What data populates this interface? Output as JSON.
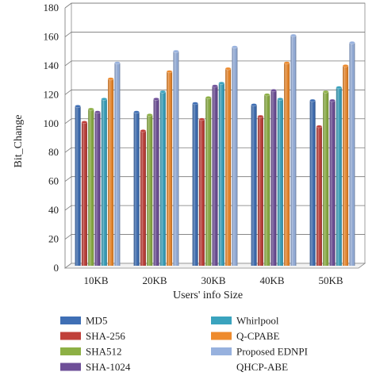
{
  "chart_data": {
    "type": "bar",
    "ylabel": "Bit_Change",
    "xlabel": "Users' info Size",
    "categories": [
      "10KB",
      "20KB",
      "30KB",
      "40KB",
      "50KB"
    ],
    "ylim": [
      0,
      180
    ],
    "yticks": [
      0,
      20,
      40,
      60,
      80,
      100,
      120,
      140,
      160,
      180
    ],
    "grid": true,
    "legend_position": "bottom",
    "series": [
      {
        "name": "MD5",
        "color": "#3f6fb5",
        "values": [
          112,
          108,
          114,
          113,
          116
        ]
      },
      {
        "name": "SHA-256",
        "color": "#c0403a",
        "values": [
          101,
          95,
          103,
          105,
          98
        ]
      },
      {
        "name": "SHA512",
        "color": "#8db045",
        "values": [
          110,
          106,
          118,
          120,
          122
        ]
      },
      {
        "name": "SHA-1024",
        "color": "#6e4f98",
        "values": [
          108,
          117,
          126,
          123,
          116
        ]
      },
      {
        "name": "Whirlpool",
        "color": "#3aa3be",
        "values": [
          117,
          122,
          128,
          117,
          125
        ]
      },
      {
        "name": "Q-CPABE",
        "color": "#ee8b2e",
        "values": [
          131,
          136,
          138,
          142,
          140
        ]
      },
      {
        "name": "Proposed EDNPI",
        "color": "#97b1de",
        "values": [
          142,
          150,
          153,
          161,
          156
        ]
      }
    ],
    "extra_legend_entries": [
      "QHCP-ABE"
    ]
  }
}
